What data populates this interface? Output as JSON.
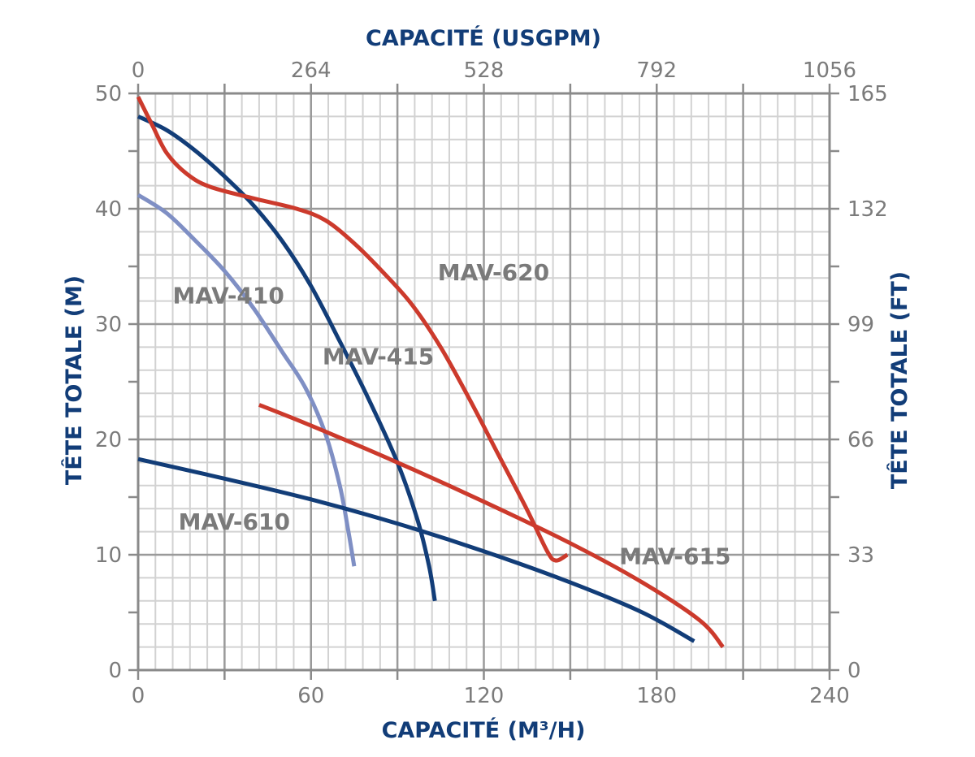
{
  "chart_data": {
    "type": "line",
    "title": "",
    "x_top_label": "CAPACITÉ (USGPM)",
    "x_bottom_label": "CAPACITÉ (M³/H)",
    "y_left_label": "TÊTE TOTALE (M)",
    "y_right_label": "TÊTE TOTALE (FT)",
    "x_bottom_ticks": [
      "0",
      "60",
      "120",
      "180",
      "240"
    ],
    "x_top_ticks": [
      "0",
      "264",
      "528",
      "792",
      "1056"
    ],
    "y_left_ticks": [
      "0",
      "10",
      "20",
      "30",
      "40",
      "50"
    ],
    "y_right_ticks": [
      "0",
      "33",
      "66",
      "99",
      "132",
      "165"
    ],
    "xlim": [
      0,
      240
    ],
    "ylim": [
      0,
      50
    ],
    "grid": true,
    "series": [
      {
        "name": "MAV-410",
        "color": "#7f8fc4",
        "points": [
          [
            0,
            41.2
          ],
          [
            10,
            39.6
          ],
          [
            20,
            37.2
          ],
          [
            30,
            34.6
          ],
          [
            40,
            31.4
          ],
          [
            50,
            27.6
          ],
          [
            58,
            24.5
          ],
          [
            65,
            20.5
          ],
          [
            70,
            16.0
          ],
          [
            73,
            12.0
          ],
          [
            75,
            9.0
          ]
        ]
      },
      {
        "name": "MAV-415",
        "color": "#123d78",
        "points": [
          [
            0,
            48.0
          ],
          [
            10,
            46.8
          ],
          [
            20,
            45.0
          ],
          [
            30,
            42.8
          ],
          [
            40,
            40.3
          ],
          [
            50,
            37.2
          ],
          [
            60,
            33.3
          ],
          [
            70,
            28.5
          ],
          [
            80,
            23.5
          ],
          [
            90,
            18.0
          ],
          [
            97,
            13.0
          ],
          [
            101,
            9.0
          ],
          [
            103,
            6.0
          ]
        ]
      },
      {
        "name": "MAV-610",
        "color": "#123d78",
        "points": [
          [
            0,
            18.3
          ],
          [
            30,
            16.6
          ],
          [
            60,
            14.8
          ],
          [
            90,
            12.7
          ],
          [
            120,
            10.3
          ],
          [
            150,
            7.6
          ],
          [
            175,
            5.0
          ],
          [
            193,
            2.5
          ]
        ]
      },
      {
        "name": "MAV-615",
        "color": "#cc3a2c",
        "points": [
          [
            42,
            23.0
          ],
          [
            60,
            21.2
          ],
          [
            90,
            18.0
          ],
          [
            120,
            14.6
          ],
          [
            150,
            11.0
          ],
          [
            175,
            7.6
          ],
          [
            195,
            4.3
          ],
          [
            203,
            2.0
          ]
        ]
      },
      {
        "name": "MAV-620",
        "color": "#cc3a2c",
        "points": [
          [
            0,
            49.7
          ],
          [
            5,
            47.2
          ],
          [
            10,
            44.8
          ],
          [
            17,
            43.0
          ],
          [
            25,
            41.9
          ],
          [
            40,
            40.9
          ],
          [
            55,
            40.0
          ],
          [
            65,
            39.0
          ],
          [
            75,
            37.0
          ],
          [
            85,
            34.5
          ],
          [
            95,
            31.7
          ],
          [
            105,
            28.0
          ],
          [
            115,
            23.5
          ],
          [
            125,
            18.7
          ],
          [
            135,
            13.9
          ],
          [
            142,
            10.3
          ],
          [
            145,
            9.5
          ],
          [
            149,
            10.0
          ]
        ]
      }
    ],
    "label_anchors": [
      {
        "name": "MAV-410",
        "x": 12,
        "y": 31.8
      },
      {
        "name": "MAV-415",
        "x": 64,
        "y": 26.5
      },
      {
        "name": "MAV-620",
        "x": 104,
        "y": 33.8
      },
      {
        "name": "MAV-610",
        "x": 14,
        "y": 12.2
      },
      {
        "name": "MAV-615",
        "x": 167,
        "y": 9.2
      }
    ]
  }
}
